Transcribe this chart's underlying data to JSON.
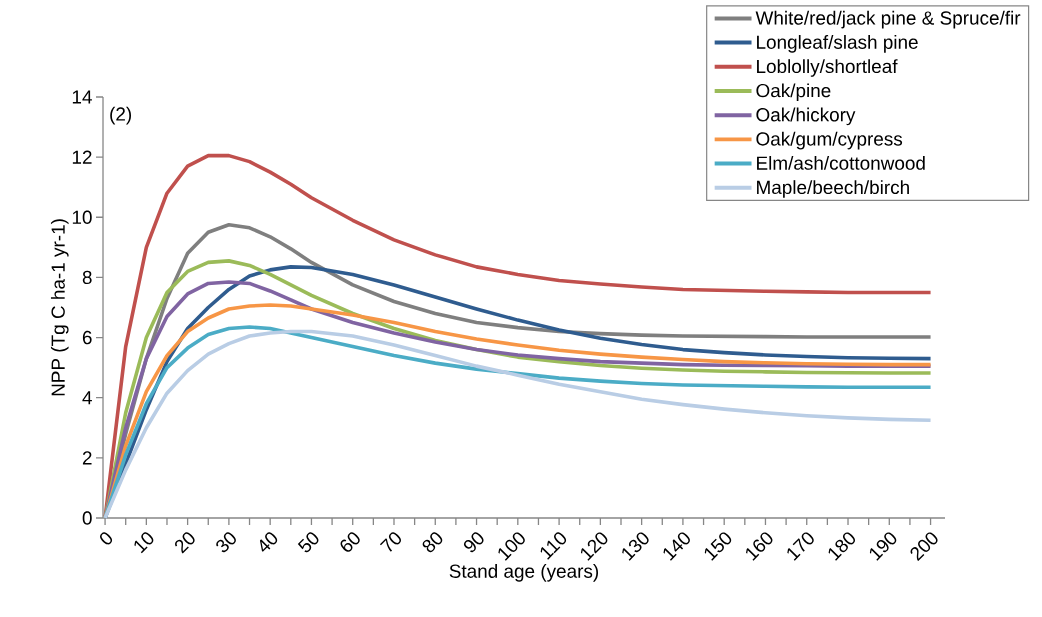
{
  "chart_data": {
    "type": "line",
    "xlabel": "Stand age (years)",
    "ylabel": "NPP (Tg C ha-1 yr-1)",
    "annotations": [
      "(2)"
    ],
    "x": [
      0,
      5,
      10,
      15,
      20,
      25,
      30,
      35,
      40,
      45,
      50,
      60,
      70,
      80,
      90,
      100,
      110,
      120,
      130,
      140,
      150,
      160,
      170,
      180,
      190,
      200
    ],
    "xlim": [
      -0.5,
      203.5
    ],
    "xticks": [
      0,
      {
        "value": 5,
        "label": null
      },
      10,
      {
        "value": 15,
        "label": null
      },
      20,
      {
        "value": 25,
        "label": null
      },
      30,
      {
        "value": 35,
        "label": null
      },
      40,
      {
        "value": 45,
        "label": null
      },
      50,
      {
        "value": 55,
        "label": null
      },
      60,
      {
        "value": 65,
        "label": null
      },
      70,
      {
        "value": 75,
        "label": null
      },
      80,
      {
        "value": 85,
        "label": null
      },
      90,
      {
        "value": 95,
        "label": null
      },
      100,
      {
        "value": 105,
        "label": null
      },
      110,
      {
        "value": 115,
        "label": null
      },
      120,
      {
        "value": 125,
        "label": null
      },
      130,
      {
        "value": 135,
        "label": null
      },
      140,
      {
        "value": 145,
        "label": null
      },
      150,
      {
        "value": 155,
        "label": null
      },
      160,
      {
        "value": 165,
        "label": null
      },
      170,
      {
        "value": 175,
        "label": null
      },
      180,
      {
        "value": 185,
        "label": null
      },
      190,
      {
        "value": 195,
        "label": null
      },
      200
    ],
    "ylim": [
      0,
      14
    ],
    "yticks": [
      0,
      2,
      4,
      6,
      8,
      10,
      12,
      14
    ],
    "grid": false,
    "legend": "top right",
    "marker": "none",
    "line_style": "solid",
    "series": [
      {
        "name": "White/red/jack pine & Spruce/fir",
        "color": "#7f7f7f",
        "values": [
          0,
          2.8,
          5.3,
          7.3,
          8.8,
          9.5,
          9.75,
          9.65,
          9.35,
          8.95,
          8.5,
          7.75,
          7.2,
          6.8,
          6.5,
          6.33,
          6.2,
          6.13,
          6.08,
          6.05,
          6.04,
          6.03,
          6.02,
          6.02,
          6.02,
          6.02
        ]
      },
      {
        "name": "Longleaf/slash pine",
        "color": "#2f5c8f",
        "values": [
          0,
          1.8,
          3.6,
          5.2,
          6.3,
          7.0,
          7.6,
          8.05,
          8.25,
          8.35,
          8.33,
          8.1,
          7.75,
          7.35,
          6.95,
          6.58,
          6.25,
          5.98,
          5.77,
          5.6,
          5.5,
          5.42,
          5.37,
          5.33,
          5.31,
          5.3
        ]
      },
      {
        "name": "Loblolly/shortleaf",
        "color": "#c0504d",
        "values": [
          0,
          5.7,
          9.0,
          10.8,
          11.7,
          12.05,
          12.05,
          11.85,
          11.5,
          11.1,
          10.65,
          9.9,
          9.25,
          8.75,
          8.35,
          8.1,
          7.9,
          7.78,
          7.68,
          7.6,
          7.57,
          7.54,
          7.52,
          7.5,
          7.5,
          7.5
        ]
      },
      {
        "name": "Oak/pine",
        "color": "#9bbb59",
        "values": [
          0,
          3.5,
          6.0,
          7.5,
          8.2,
          8.5,
          8.55,
          8.4,
          8.1,
          7.75,
          7.4,
          6.8,
          6.3,
          5.9,
          5.6,
          5.35,
          5.2,
          5.07,
          4.98,
          4.92,
          4.88,
          4.86,
          4.84,
          4.83,
          4.82,
          4.82
        ]
      },
      {
        "name": "Oak/hickory",
        "color": "#8064a2",
        "values": [
          0,
          3.0,
          5.3,
          6.7,
          7.45,
          7.8,
          7.85,
          7.8,
          7.55,
          7.25,
          6.95,
          6.5,
          6.15,
          5.85,
          5.6,
          5.42,
          5.3,
          5.2,
          5.15,
          5.1,
          5.08,
          5.07,
          5.06,
          5.05,
          5.05,
          5.05
        ]
      },
      {
        "name": "Oak/gum/cypress",
        "color": "#f79646",
        "values": [
          0,
          2.4,
          4.2,
          5.4,
          6.2,
          6.65,
          6.95,
          7.05,
          7.08,
          7.05,
          6.95,
          6.75,
          6.5,
          6.2,
          5.95,
          5.75,
          5.58,
          5.45,
          5.35,
          5.27,
          5.2,
          5.16,
          5.13,
          5.11,
          5.1,
          5.1
        ]
      },
      {
        "name": "Elm/ash/cottonwood",
        "color": "#4bacc6",
        "values": [
          0,
          2.1,
          3.8,
          5.0,
          5.65,
          6.1,
          6.3,
          6.35,
          6.3,
          6.15,
          6.0,
          5.7,
          5.4,
          5.15,
          4.95,
          4.8,
          4.65,
          4.55,
          4.47,
          4.42,
          4.4,
          4.38,
          4.36,
          4.35,
          4.35,
          4.35
        ]
      },
      {
        "name": "Maple/beech/birch",
        "color": "#b9cde5",
        "values": [
          0,
          1.6,
          3.0,
          4.15,
          4.9,
          5.45,
          5.8,
          6.05,
          6.15,
          6.2,
          6.2,
          6.05,
          5.75,
          5.4,
          5.05,
          4.75,
          4.45,
          4.2,
          3.95,
          3.77,
          3.62,
          3.5,
          3.4,
          3.33,
          3.28,
          3.25
        ]
      }
    ]
  }
}
